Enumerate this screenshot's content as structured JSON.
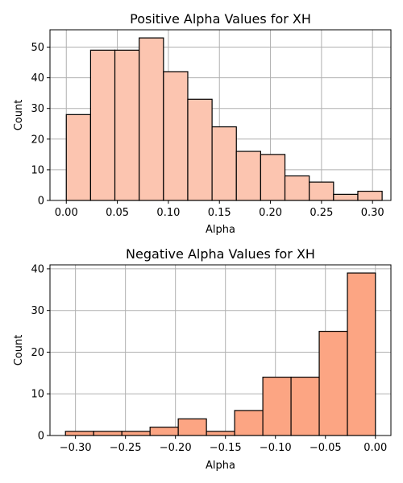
{
  "chart_data": [
    {
      "type": "bar",
      "title": "Positive Alpha Values for XH",
      "xlabel": "Alpha",
      "ylabel": "Count",
      "color": "#fcc5b0",
      "grid": true,
      "xlim": [
        -0.016,
        0.318
      ],
      "ylim": [
        0,
        55.65
      ],
      "xticks": [
        0.0,
        0.05,
        0.1,
        0.15,
        0.2,
        0.25,
        0.3
      ],
      "xtick_labels": [
        "0.00",
        "0.05",
        "0.10",
        "0.15",
        "0.20",
        "0.25",
        "0.30"
      ],
      "yticks": [
        0,
        10,
        20,
        30,
        40,
        50
      ],
      "ytick_labels": [
        "0",
        "10",
        "20",
        "30",
        "40",
        "50"
      ],
      "bins": [
        {
          "x0": 0.0,
          "x1": 0.0238,
          "count": 28
        },
        {
          "x0": 0.0238,
          "x1": 0.0476,
          "count": 49
        },
        {
          "x0": 0.0476,
          "x1": 0.0714,
          "count": 49
        },
        {
          "x0": 0.0714,
          "x1": 0.0952,
          "count": 53
        },
        {
          "x0": 0.0952,
          "x1": 0.119,
          "count": 42
        },
        {
          "x0": 0.119,
          "x1": 0.1428,
          "count": 33
        },
        {
          "x0": 0.1428,
          "x1": 0.1666,
          "count": 24
        },
        {
          "x0": 0.1666,
          "x1": 0.1904,
          "count": 16
        },
        {
          "x0": 0.1904,
          "x1": 0.2142,
          "count": 15
        },
        {
          "x0": 0.2142,
          "x1": 0.238,
          "count": 8
        },
        {
          "x0": 0.238,
          "x1": 0.2618,
          "count": 6
        },
        {
          "x0": 0.2618,
          "x1": 0.2856,
          "count": 2
        },
        {
          "x0": 0.2856,
          "x1": 0.3094,
          "count": 3
        }
      ]
    },
    {
      "type": "bar",
      "title": "Negative Alpha Values for XH",
      "xlabel": "Alpha",
      "ylabel": "Count",
      "color": "#fca583",
      "grid": true,
      "xlim": [
        -0.3255,
        0.0155
      ],
      "ylim": [
        0,
        40.95
      ],
      "xticks": [
        -0.3,
        -0.25,
        -0.2,
        -0.15,
        -0.1,
        -0.05,
        0.0
      ],
      "xtick_labels": [
        "−0.30",
        "−0.25",
        "−0.20",
        "−0.15",
        "−0.10",
        "−0.05",
        "0.00"
      ],
      "yticks": [
        0,
        10,
        20,
        30,
        40
      ],
      "ytick_labels": [
        "0",
        "10",
        "20",
        "30",
        "40"
      ],
      "bins": [
        {
          "x0": -0.31,
          "x1": -0.2818,
          "count": 1
        },
        {
          "x0": -0.2818,
          "x1": -0.2536,
          "count": 1
        },
        {
          "x0": -0.2536,
          "x1": -0.2254,
          "count": 1
        },
        {
          "x0": -0.2254,
          "x1": -0.1972,
          "count": 2
        },
        {
          "x0": -0.1972,
          "x1": -0.169,
          "count": 4
        },
        {
          "x0": -0.169,
          "x1": -0.1408,
          "count": 1
        },
        {
          "x0": -0.1408,
          "x1": -0.1126,
          "count": 6
        },
        {
          "x0": -0.1126,
          "x1": -0.0844,
          "count": 14
        },
        {
          "x0": -0.0844,
          "x1": -0.0562,
          "count": 14
        },
        {
          "x0": -0.0562,
          "x1": -0.028,
          "count": 25
        },
        {
          "x0": -0.028,
          "x1": 0.0,
          "count": 39
        }
      ]
    }
  ]
}
